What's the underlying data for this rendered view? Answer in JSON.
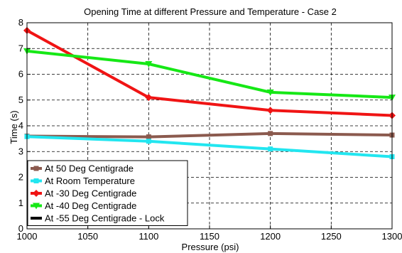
{
  "chart_data": {
    "type": "line",
    "title": "Opening Time at different Pressure and Temperature - Case 2",
    "xlabel": "Pressure (psi)",
    "ylabel": "Time (s)",
    "xlim": [
      1000,
      1300
    ],
    "ylim": [
      0,
      8
    ],
    "xticks": [
      1000,
      1050,
      1100,
      1150,
      1200,
      1250,
      1300
    ],
    "yticks": [
      0,
      1,
      2,
      3,
      4,
      5,
      6,
      7,
      8
    ],
    "grid": true,
    "legend_position": "bottom-left",
    "series": [
      {
        "name": "At 50 Deg Centigrade",
        "color": "#8B5A4E",
        "marker": "square",
        "x": [
          1000,
          1100,
          1200,
          1300
        ],
        "y": [
          3.6,
          3.57,
          3.7,
          3.64
        ]
      },
      {
        "name": "At Room Temperature",
        "color": "#22E6F0",
        "marker": "square",
        "x": [
          1000,
          1100,
          1200,
          1300
        ],
        "y": [
          3.58,
          3.4,
          3.1,
          2.8
        ]
      },
      {
        "name": "At -30 Deg Centigrade",
        "color": "#F01414",
        "marker": "diamond",
        "x": [
          1000,
          1100,
          1200,
          1300
        ],
        "y": [
          7.7,
          5.1,
          4.6,
          4.4
        ]
      },
      {
        "name": "At -40 Deg Centigrade",
        "color": "#16E816",
        "marker": "triangle-down",
        "x": [
          1000,
          1100,
          1200,
          1300
        ],
        "y": [
          6.9,
          6.4,
          5.3,
          5.1
        ]
      },
      {
        "name": "At -55 Deg Centigrade - Lock",
        "color": "#000000",
        "marker": "none",
        "x": [],
        "y": []
      }
    ]
  }
}
